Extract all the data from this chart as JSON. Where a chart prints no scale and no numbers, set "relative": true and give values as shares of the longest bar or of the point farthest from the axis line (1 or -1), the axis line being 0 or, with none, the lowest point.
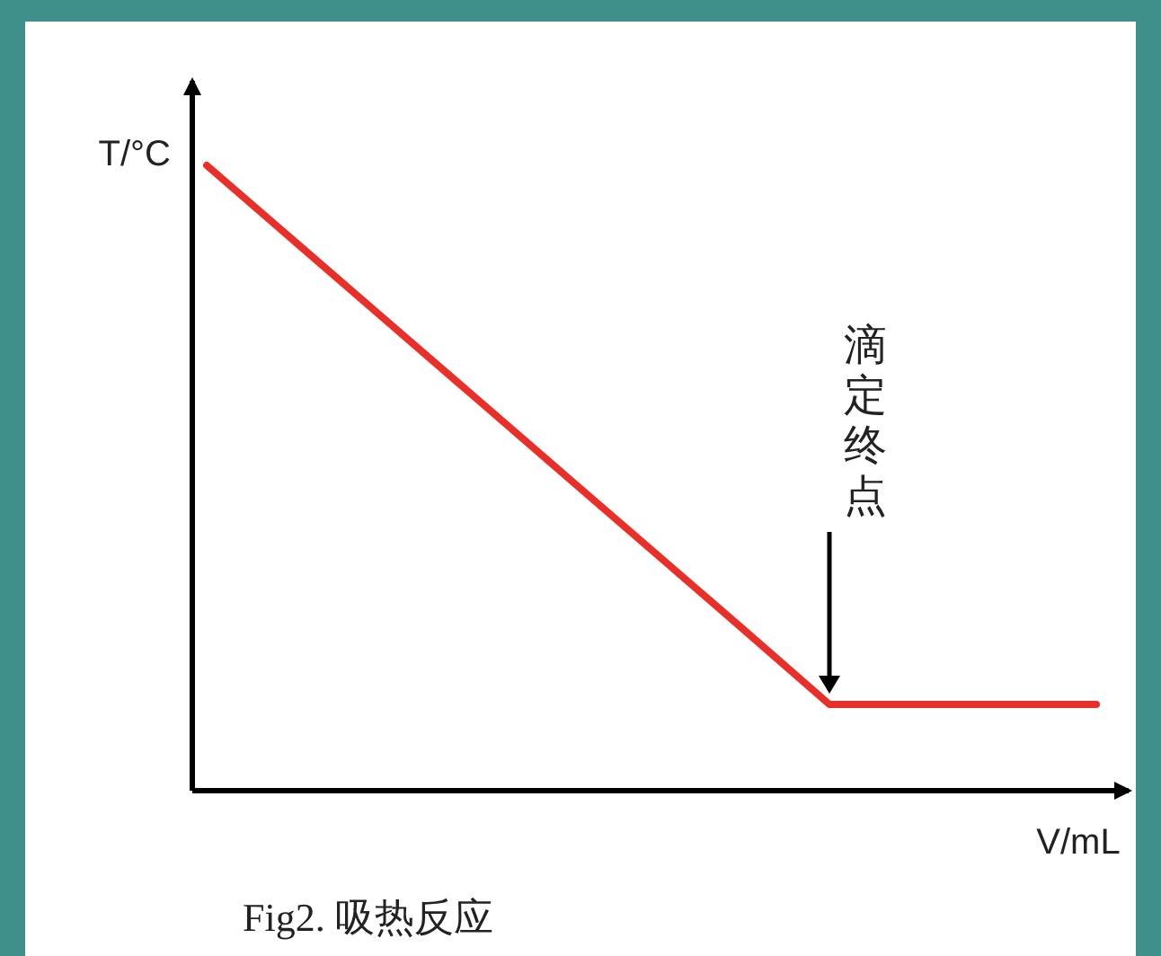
{
  "chart_data": {
    "type": "line",
    "relative": true,
    "xlabel": "V/mL",
    "ylabel": "T/°C",
    "categories": [
      null,
      null,
      null,
      null,
      null,
      null,
      null,
      null,
      null,
      null,
      null
    ],
    "series": [
      {
        "color": "#e8302a",
        "values": [
          1,
          0.877,
          0.754,
          0.631,
          0.508,
          0.385,
          0.262,
          0.138,
          0.138,
          0.138,
          0.138
        ]
      }
    ],
    "annotations": [
      "滴定终点",
      "Fig2. 吸热反应"
    ]
  }
}
